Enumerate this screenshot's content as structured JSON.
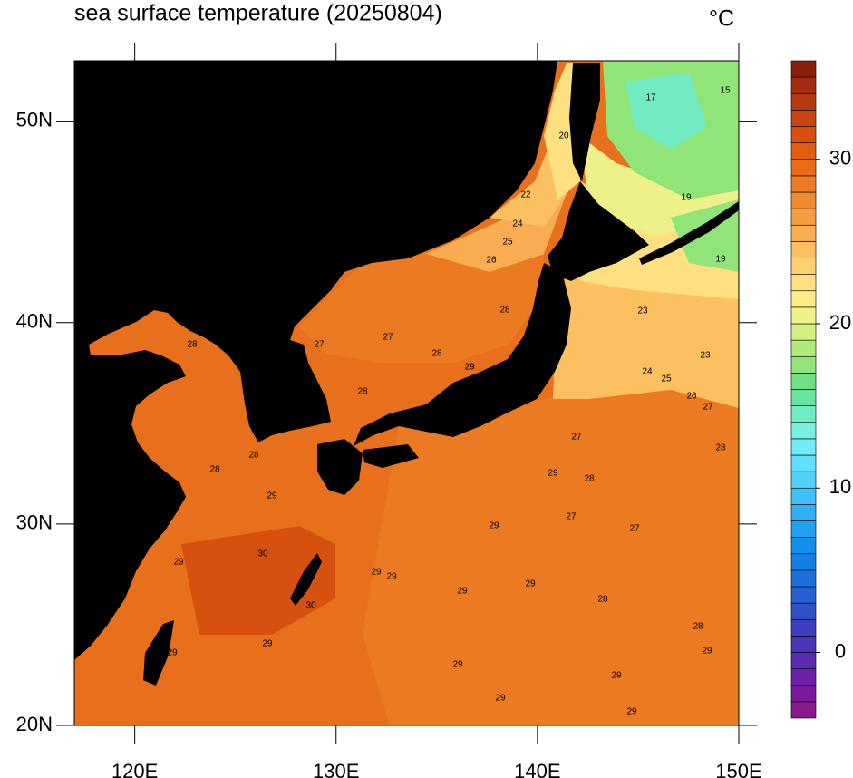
{
  "title": "sea surface temperature (20250804)",
  "unit": "°C",
  "map": {
    "xlim": [
      117,
      150
    ],
    "ylim": [
      20,
      53
    ],
    "xticks": [
      {
        "value": 120,
        "label": "120E"
      },
      {
        "value": 130,
        "label": "130E"
      },
      {
        "value": 140,
        "label": "140E"
      },
      {
        "value": 150,
        "label": "150E"
      }
    ],
    "yticks": [
      {
        "value": 20,
        "label": "20N"
      },
      {
        "value": 30,
        "label": "30N"
      },
      {
        "value": 40,
        "label": "40N"
      },
      {
        "value": 50,
        "label": "50N"
      }
    ]
  },
  "colorbar": {
    "lim": [
      -4,
      36
    ],
    "ticks": [
      0,
      10,
      20,
      30
    ],
    "colors": [
      "#8a1a8a",
      "#7a1a9a",
      "#6a22a8",
      "#5a2ab2",
      "#4a34b8",
      "#3c40c0",
      "#3050c8",
      "#2660d2",
      "#1c70dc",
      "#1480e6",
      "#1090ec",
      "#20a0f0",
      "#30b0f4",
      "#40c0f8",
      "#50d0fa",
      "#60e0fc",
      "#70ecf8",
      "#78f0e0",
      "#70eac0",
      "#68e4a0",
      "#70e080",
      "#90e478",
      "#b0ea78",
      "#d0f080",
      "#eef08a",
      "#fcec88",
      "#fee080",
      "#fed070",
      "#fcc060",
      "#f8ae50",
      "#f49c40",
      "#f08a30",
      "#ec7a22",
      "#e86c18",
      "#e05e10",
      "#d85010",
      "#c84410",
      "#b83810",
      "#a42c10",
      "#8c1c0c"
    ]
  },
  "contour_labels": [
    17,
    15,
    20,
    19,
    19,
    22,
    24,
    25,
    26,
    28,
    27,
    27,
    28,
    28,
    29,
    28,
    24,
    25,
    23,
    23,
    26,
    27,
    28,
    28,
    28,
    29,
    29,
    27,
    28,
    27,
    29,
    27,
    30,
    30,
    29,
    29,
    29,
    29,
    28,
    28,
    29,
    29,
    29,
    29,
    29,
    29,
    29,
    29
  ]
}
